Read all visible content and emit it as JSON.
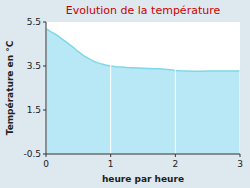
{
  "chart_data": {
    "type": "area",
    "title": "Evolution de la température",
    "x_label": "heure par heure",
    "y_label": "Température en °C",
    "x": [
      0,
      0.08,
      0.17,
      0.25,
      0.33,
      0.42,
      0.5,
      0.58,
      0.67,
      0.75,
      0.83,
      0.92,
      1.0,
      1.08,
      1.17,
      1.25,
      1.33,
      1.42,
      1.5,
      1.58,
      1.67,
      1.75,
      1.83,
      1.92,
      2.0,
      2.08,
      2.17,
      2.25,
      2.33,
      2.42,
      2.5,
      2.58,
      2.67,
      2.75,
      2.83,
      2.92,
      3.0
    ],
    "values": [
      5.2,
      5.05,
      4.9,
      4.72,
      4.55,
      4.35,
      4.15,
      3.97,
      3.82,
      3.7,
      3.62,
      3.55,
      3.5,
      3.47,
      3.45,
      3.43,
      3.42,
      3.41,
      3.4,
      3.39,
      3.38,
      3.37,
      3.35,
      3.33,
      3.3,
      3.28,
      3.27,
      3.26,
      3.26,
      3.26,
      3.27,
      3.27,
      3.27,
      3.27,
      3.27,
      3.27,
      3.27
    ],
    "color": "#7dd8e8",
    "xlim": [
      0,
      3
    ],
    "ylim": [
      -0.5,
      5.5
    ],
    "xticks": [
      0,
      1,
      2,
      3
    ],
    "yticks": [
      -0.5,
      1.5,
      3.5,
      5.5
    ],
    "grid": "x"
  }
}
